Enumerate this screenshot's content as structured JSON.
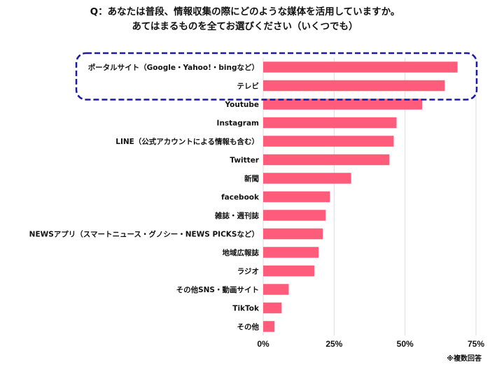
{
  "title": {
    "line1": "Q：あなたは普段、情報収集の際にどのような媒体を活用していますか。",
    "line2": "あてはまるものを全てお選びください（いくつでも）"
  },
  "footnote": "※複数回答",
  "colors": {
    "bar": "#ff5b7b",
    "highlight_border": "#1a1aa6",
    "grid": "#dddddd"
  },
  "chart_data": {
    "type": "bar",
    "orientation": "horizontal",
    "categories": [
      "ポータルサイト（Google・Yahoo!・bingなど）",
      "テレビ",
      "Youtube",
      "Instagram",
      "LINE（公式アカウントによる情報も含む）",
      "Twitter",
      "新聞",
      "facebook",
      "雑誌・週刊誌",
      "NEWSアプリ（スマートニュース・グノシー・NEWS PICKSなど）",
      "地域広報誌",
      "ラジオ",
      "その他SNS・動画サイト",
      "TikTok",
      "その他"
    ],
    "values": [
      68.5,
      64,
      56,
      47,
      46,
      44.5,
      31,
      23.5,
      22,
      21,
      19.5,
      18,
      9,
      6.5,
      4
    ],
    "unit": "%",
    "xlim": [
      0,
      75
    ],
    "xticks": [
      "0%",
      "25%",
      "50%",
      "75%"
    ],
    "highlighted_categories": [
      0,
      1
    ],
    "grid": true
  }
}
